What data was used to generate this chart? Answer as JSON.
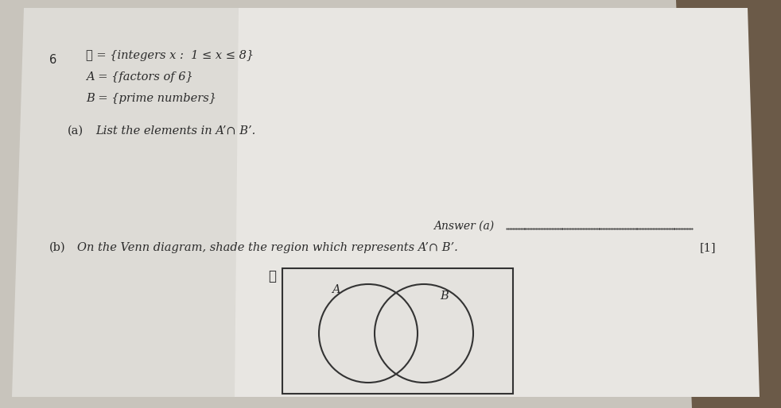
{
  "background_color": "#c8c4bc",
  "page_color_left": "#ccc8c0",
  "page_color_right": "#e8e6e2",
  "question_number": "6",
  "line1": "ℰ = {integers x :  1 ≤ x ≤ 8}",
  "line2": "A = {factors of 6}",
  "line3": "B = {prime numbers}",
  "part_a_label": "(a)",
  "part_a_text": "List the elements in A’∩ B’.",
  "answer_label": "Answer (a)",
  "part_b_label": "(b)",
  "part_b_text": "On the Venn diagram, shade the region which represents A’∩ B’.",
  "mark": "[1]",
  "venn_xi_label": "ℰ",
  "venn_A_label": "A",
  "venn_B_label": "B",
  "text_color": "#2a2a2a",
  "venn_bg": "#e4e2de",
  "venn_border": "#333333"
}
